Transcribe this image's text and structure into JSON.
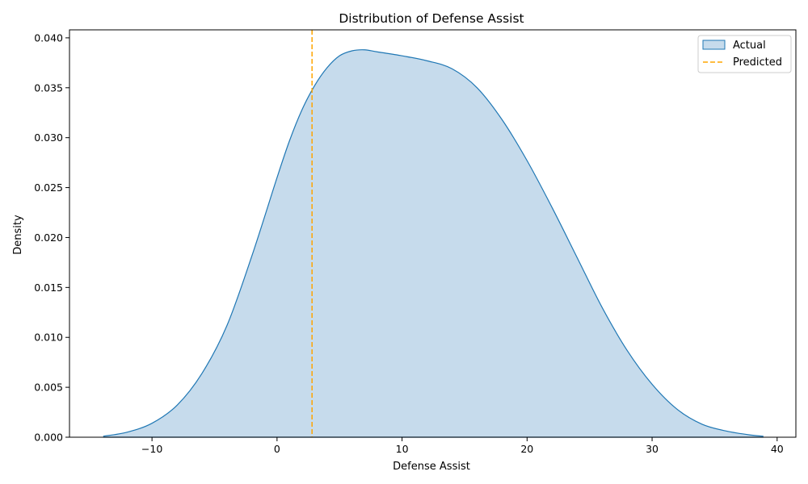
{
  "chart_data": {
    "type": "area",
    "title": "Distribution of Defense Assist",
    "xlabel": "Defense Assist",
    "ylabel": "Density",
    "xlim": [
      -16.6,
      41.5
    ],
    "ylim": [
      0,
      0.0408
    ],
    "x_ticks": [
      -10,
      0,
      10,
      20,
      30,
      40
    ],
    "x_tick_labels": [
      "−10",
      "0",
      "10",
      "20",
      "30",
      "40"
    ],
    "y_ticks": [
      0,
      0.005,
      0.01,
      0.015,
      0.02,
      0.025,
      0.03,
      0.035,
      0.04
    ],
    "y_tick_labels": [
      "0.000",
      "0.005",
      "0.010",
      "0.015",
      "0.020",
      "0.025",
      "0.030",
      "0.035",
      "0.040"
    ],
    "grid": false,
    "legend_position": "upper right",
    "series": [
      {
        "name": "Actual",
        "kind": "kde-fill",
        "color": "#1f77b4",
        "fill_color": "#c6dbec",
        "x": [
          -13.9,
          -12,
          -10,
          -8,
          -6,
          -4,
          -2,
          0,
          1,
          2,
          3,
          4,
          5,
          6,
          7,
          8,
          10,
          12,
          14,
          16,
          18,
          20,
          22,
          24,
          26,
          28,
          30,
          32,
          34,
          36,
          38,
          38.9
        ],
        "y": [
          0.0001,
          0.0005,
          0.0014,
          0.0032,
          0.0064,
          0.0112,
          0.0182,
          0.026,
          0.0297,
          0.0328,
          0.0352,
          0.037,
          0.0382,
          0.0387,
          0.0388,
          0.0386,
          0.0382,
          0.0377,
          0.0369,
          0.035,
          0.0318,
          0.0277,
          0.023,
          0.018,
          0.013,
          0.0087,
          0.0053,
          0.0028,
          0.0013,
          0.0006,
          0.0002,
          0.0001
        ]
      },
      {
        "name": "Predicted",
        "kind": "vline",
        "color": "#ffa500",
        "x": 2.8
      }
    ]
  }
}
